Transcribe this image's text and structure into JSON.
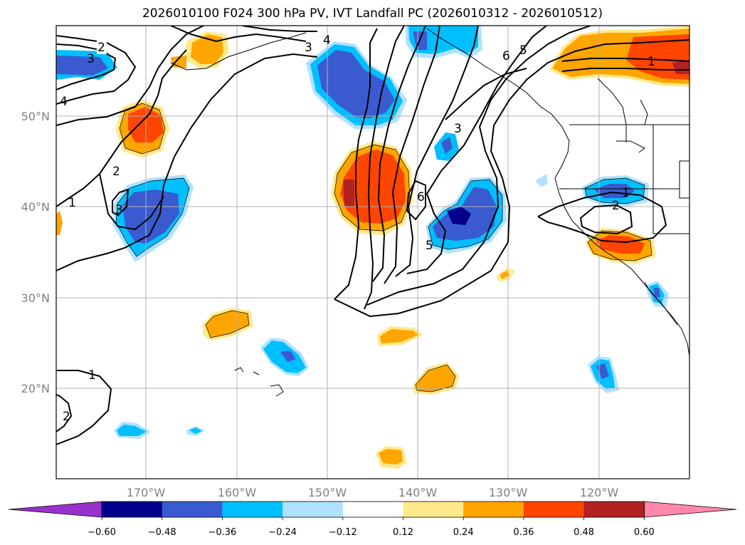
{
  "title": "2026010100 F024 300 hPa PV, IVT Landfall PC (2026010312 - 2026010512)",
  "map": {
    "lat_labels": [
      "50°N",
      "40°N",
      "30°N",
      "20°N"
    ],
    "lon_labels": [
      "170°W",
      "160°W",
      "150°W",
      "140°W",
      "130°W",
      "120°W"
    ]
  },
  "colorbar": {
    "levels": [
      "−0.60",
      "−0.48",
      "−0.36",
      "−0.24",
      "−0.12",
      "0.12",
      "0.24",
      "0.36",
      "0.48",
      "0.60"
    ],
    "colors": [
      "#9932cc",
      "#00008b",
      "#3a5bcf",
      "#00bfff",
      "#b0e2ff",
      "#ffffff",
      "#ffe98a",
      "#ffa500",
      "#ff4500",
      "#b22222",
      "#ff88aa"
    ]
  },
  "contour_labels": [
    {
      "text": "2",
      "name": "contour-label-2-nw"
    },
    {
      "text": "3",
      "name": "contour-label-3-nw"
    },
    {
      "text": "4",
      "name": "contour-label-4-nw"
    },
    {
      "text": "3",
      "name": "contour-label-3-n"
    },
    {
      "text": "4",
      "name": "contour-label-4-n"
    },
    {
      "text": "2",
      "name": "contour-label-2-w"
    },
    {
      "text": "1",
      "name": "contour-label-1-w"
    },
    {
      "text": "3",
      "name": "contour-label-3-w"
    },
    {
      "text": "6",
      "name": "contour-label-6-center"
    },
    {
      "text": "5",
      "name": "contour-label-5-center"
    },
    {
      "text": "3",
      "name": "contour-label-3-ne"
    },
    {
      "text": "6",
      "name": "contour-label-6-ne"
    },
    {
      "text": "5",
      "name": "contour-label-5-ne"
    },
    {
      "text": "1",
      "name": "contour-label-1-ne"
    },
    {
      "text": "1",
      "name": "contour-label-1-e"
    },
    {
      "text": "2",
      "name": "contour-label-2-e"
    },
    {
      "text": "1",
      "name": "contour-label-1-sw"
    },
    {
      "text": "2",
      "name": "contour-label-2-sw"
    }
  ]
}
